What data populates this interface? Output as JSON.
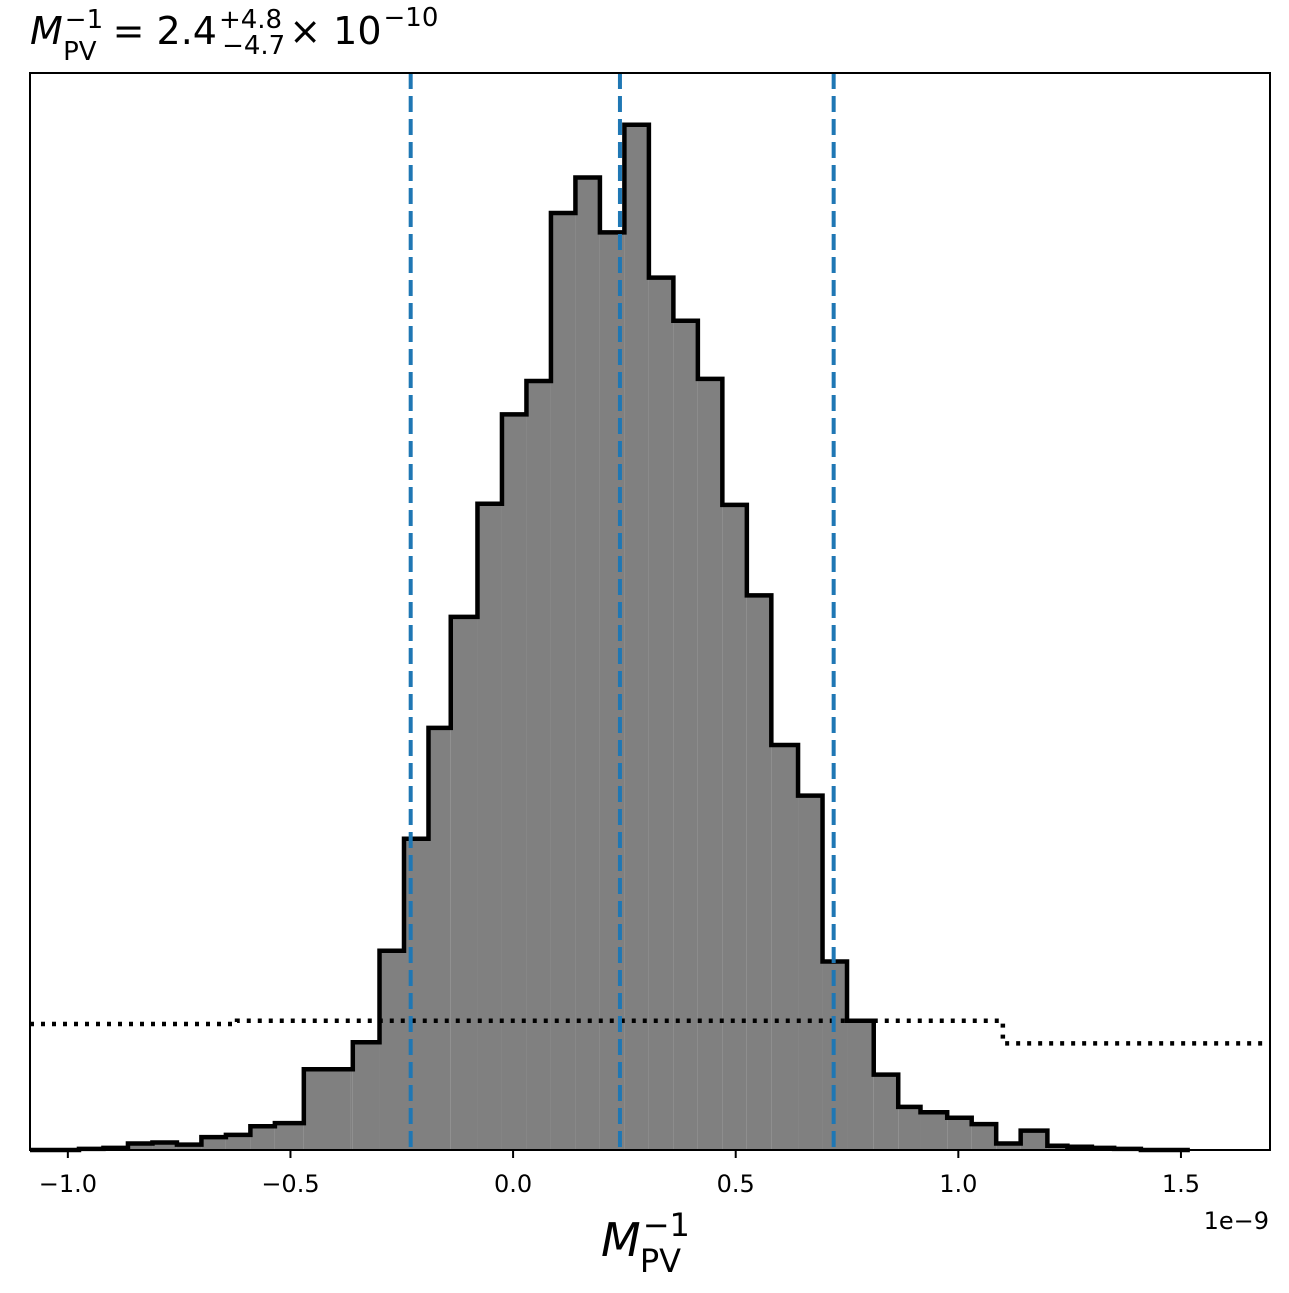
{
  "chart_data": {
    "type": "histogram",
    "title": {
      "symbol": "M",
      "symbol_sup": "−1",
      "symbol_sub": "PV",
      "equals": "= 2.4",
      "err_plus": "+4.8",
      "err_minus": "−4.7",
      "multiplier": "× 10",
      "exponent": "−10"
    },
    "xlabel": {
      "symbol": "M",
      "sup": "−1",
      "sub": "PV"
    },
    "x_offset_text": "1e−9",
    "xlim": [
      -1.085,
      1.7
    ],
    "ylim": [
      0,
      1.0
    ],
    "xticks": [
      {
        "value": -1.0,
        "label": "−1.0"
      },
      {
        "value": -0.5,
        "label": "−0.5"
      },
      {
        "value": 0.0,
        "label": "0.0"
      },
      {
        "value": 0.5,
        "label": "0.5"
      },
      {
        "value": 1.0,
        "label": "1.0"
      },
      {
        "value": 1.5,
        "label": "1.5"
      }
    ],
    "y_ticks_shown": false,
    "hist_color": "#808080",
    "hist_edge_color": "#000000",
    "quantile_color": "#1f77b4",
    "prior_color": "#000000",
    "bin_edges": [
      -1.085,
      -0.975,
      -0.92,
      -0.865,
      -0.81,
      -0.755,
      -0.7,
      -0.645,
      -0.59,
      -0.535,
      -0.47,
      -0.365,
      -0.36,
      -0.3,
      -0.245,
      -0.19,
      -0.14,
      -0.08,
      -0.025,
      0.03,
      0.085,
      0.14,
      0.195,
      0.25,
      0.305,
      0.36,
      0.415,
      0.47,
      0.525,
      0.58,
      0.64,
      0.695,
      0.75,
      0.81,
      0.865,
      0.915,
      0.975,
      1.03,
      1.085,
      1.14,
      1.2,
      1.245,
      1.3,
      1.35,
      1.41,
      1.47,
      1.52
    ],
    "bin_counts": [
      0.0,
      0.001,
      0.002,
      0.006,
      0.007,
      0.005,
      0.012,
      0.014,
      0.022,
      0.025,
      0.075,
      0.075,
      0.1,
      0.185,
      0.289,
      0.392,
      0.495,
      0.6,
      0.683,
      0.714,
      0.87,
      0.903,
      0.852,
      0.952,
      0.81,
      0.77,
      0.716,
      0.599,
      0.515,
      0.376,
      0.329,
      0.175,
      0.12,
      0.07,
      0.04,
      0.035,
      0.03,
      0.024,
      0.006,
      0.018,
      0.004,
      0.003,
      0.002,
      0.001,
      0.0,
      0.0
    ],
    "quantiles": [
      -0.23,
      0.24,
      0.72
    ],
    "prior_steps": [
      {
        "x0": -1.085,
        "x1": -0.62,
        "y": 0.117
      },
      {
        "x0": -0.62,
        "x1": 1.1,
        "y": 0.12
      },
      {
        "x0": 1.1,
        "x1": 1.7,
        "y": 0.099
      }
    ]
  }
}
